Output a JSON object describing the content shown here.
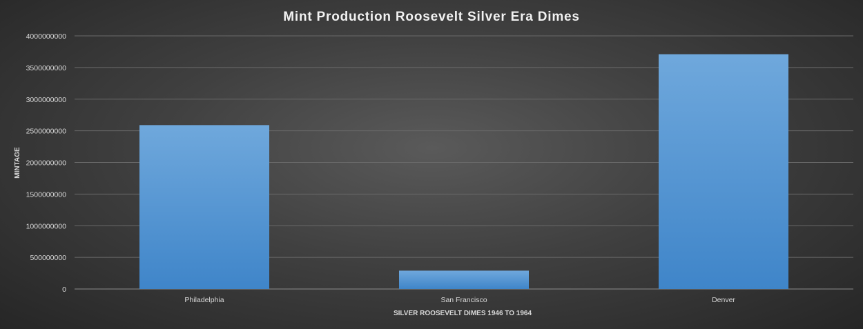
{
  "chart_data": {
    "type": "bar",
    "title": "Mint Production  Roosevelt  Silver  Era  Dimes",
    "xlabel": "SILVER ROOSEVELT DIMES 1946 TO 1964",
    "ylabel": "MINTAGE",
    "categories": [
      "Philadelphia",
      "San Francisco",
      "Denver"
    ],
    "values": [
      2590000000,
      290000000,
      3710000000
    ],
    "ylim": [
      0,
      4000000000
    ],
    "yticks": [
      0,
      500000000,
      1000000000,
      1500000000,
      2000000000,
      2500000000,
      3000000000,
      3500000000,
      4000000000
    ],
    "grid": true,
    "legend": "none",
    "bar_color_top": "#6fa8dc",
    "bar_color_bottom": "#3f85c9"
  }
}
